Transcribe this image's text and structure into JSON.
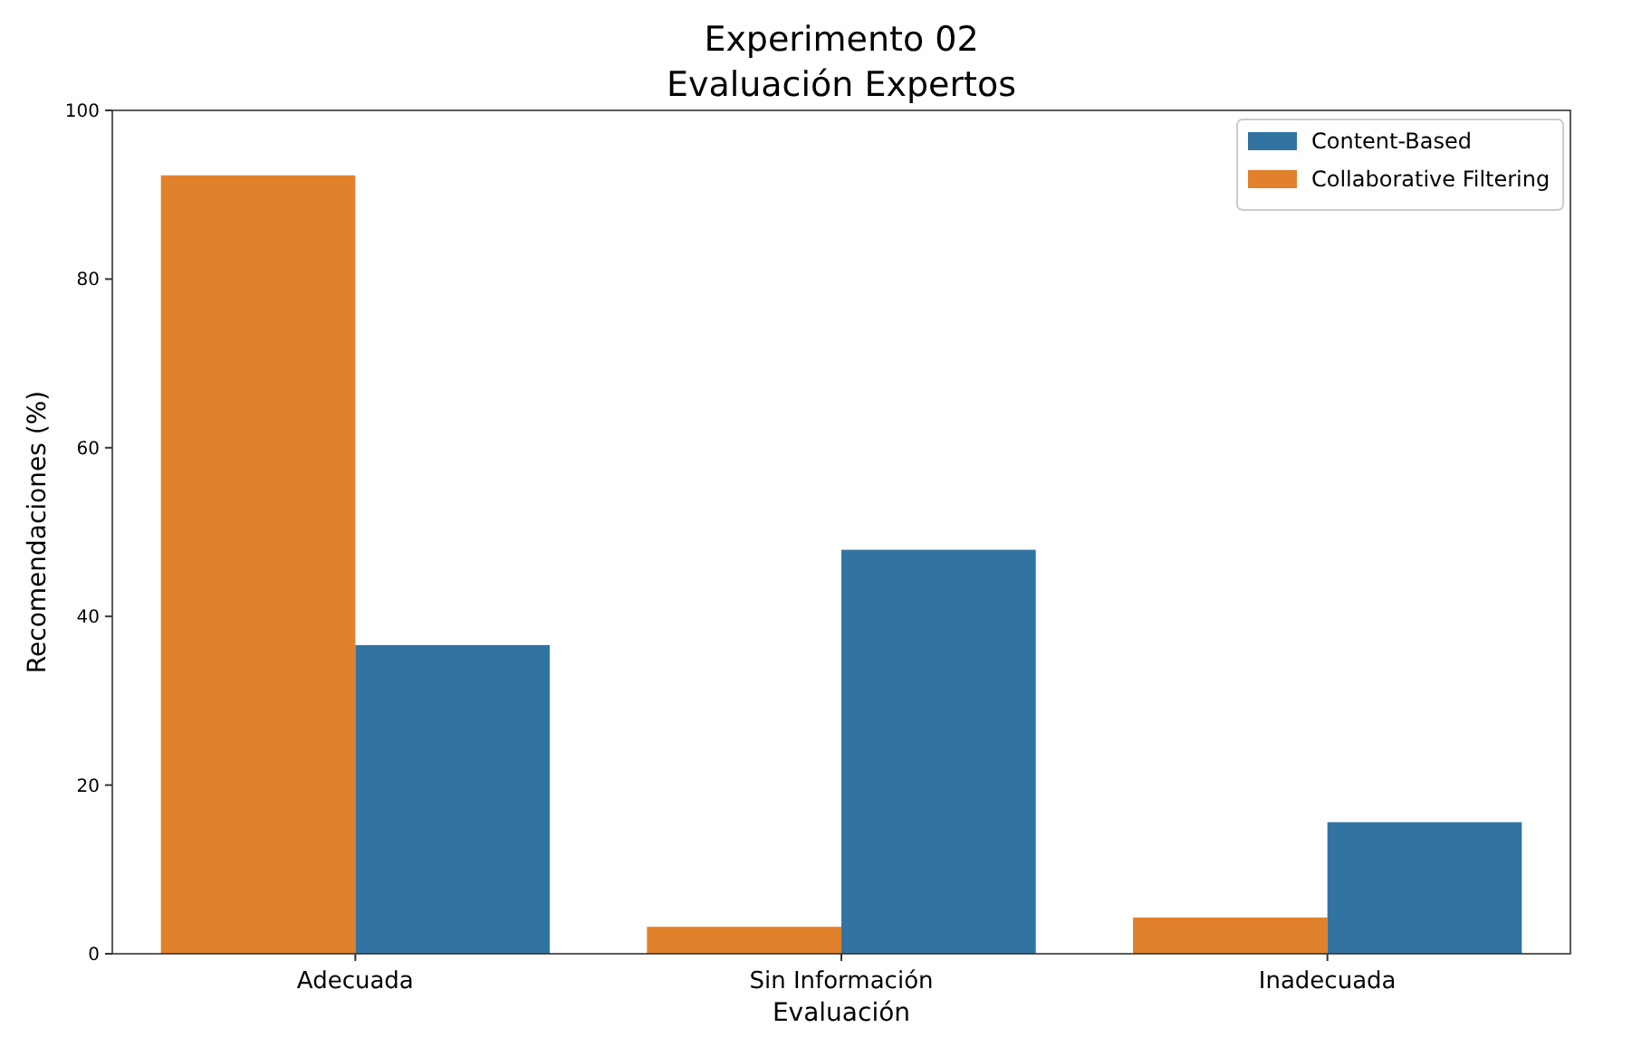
{
  "chart_data": {
    "type": "bar",
    "title": "Experimento 02\nEvaluación Expertos",
    "xlabel": "Evaluación",
    "ylabel": "Recomendaciones (%)",
    "categories": [
      "Adecuada",
      "Sin Información",
      "Inadecuada"
    ],
    "series": [
      {
        "name": "Collaborative Filtering",
        "color": "#e1812c",
        "values": [
          92.3,
          3.2,
          4.3
        ]
      },
      {
        "name": "Content-Based",
        "color": "#3274a1",
        "values": [
          36.6,
          47.9,
          15.6
        ]
      }
    ],
    "ylim": [
      0,
      100
    ],
    "yticks": [
      0,
      20,
      40,
      60,
      80,
      100
    ],
    "legend": "top right"
  }
}
